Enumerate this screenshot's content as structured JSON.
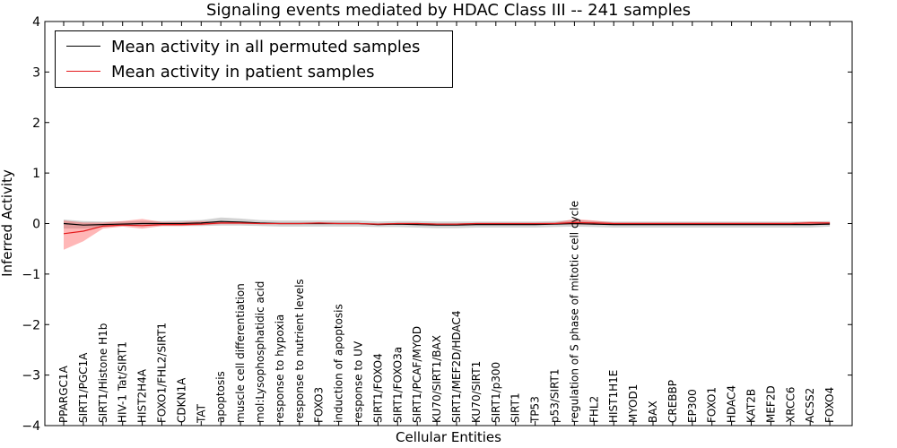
{
  "chart_data": {
    "type": "line",
    "title": "Signaling events mediated by HDAC Class III -- 241 samples",
    "xlabel": "Cellular Entities",
    "ylabel": "Inferred Activity",
    "ylim": [
      -4,
      4
    ],
    "yticks": [
      "−4",
      "−3",
      "−2",
      "−1",
      "0",
      "1",
      "2",
      "3",
      "4"
    ],
    "yticks_values": [
      -4,
      -3,
      -2,
      -1,
      0,
      1,
      2,
      3,
      4
    ],
    "categories": [
      "PPARGC1A",
      "SIRT1/PGC1A",
      "SIRT1/Histone H1b",
      "HIV-1 Tat/SIRT1",
      "HIST2H4A",
      "FOXO1/FHL2/SIRT1",
      "CDKN1A",
      "TAT",
      "apoptosis",
      "muscle cell differentiation",
      "mol:Lysophosphatidic acid",
      "response to hypoxia",
      "response to nutrient levels",
      "FOXO3",
      "induction of apoptosis",
      "response to UV",
      "SIRT1/FOXO4",
      "SIRT1/FOXO3a",
      "SIRT1/PCAF/MYOD",
      "KU70/SIRT1/BAX",
      "SIRT1/MEF2D/HDAC4",
      "KU70/SIRT1",
      "SIRT1/p300",
      "SIRT1",
      "TP53",
      "p53/SIRT1",
      "regulation of S phase of mitotic cell cycle",
      "FHL2",
      "HIST1H1E",
      "MYOD1",
      "BAX",
      "CREBBP",
      "EP300",
      "FOXO1",
      "HDAC4",
      "KAT2B",
      "MEF2D",
      "XRCC6",
      "ACSS2",
      "FOXO4"
    ],
    "series": [
      {
        "name": "Mean activity in all permuted samples",
        "color": "#000000",
        "values": [
          0.0,
          -0.03,
          -0.02,
          -0.01,
          0.0,
          0.0,
          0.0,
          0.01,
          0.04,
          0.03,
          0.01,
          0.0,
          0.0,
          0.0,
          0.0,
          0.0,
          -0.02,
          -0.01,
          -0.02,
          -0.03,
          -0.03,
          -0.02,
          -0.02,
          -0.02,
          -0.02,
          -0.01,
          0.0,
          -0.01,
          -0.02,
          -0.02,
          -0.02,
          -0.02,
          -0.02,
          -0.02,
          -0.02,
          -0.02,
          -0.02,
          -0.02,
          -0.02,
          -0.01
        ],
        "band_lower": [
          -0.1,
          -0.1,
          -0.07,
          -0.05,
          -0.05,
          -0.05,
          -0.05,
          -0.05,
          -0.04,
          -0.04,
          -0.05,
          -0.06,
          -0.06,
          -0.06,
          -0.06,
          -0.06,
          -0.07,
          -0.07,
          -0.08,
          -0.09,
          -0.09,
          -0.08,
          -0.08,
          -0.08,
          -0.08,
          -0.07,
          -0.06,
          -0.07,
          -0.08,
          -0.08,
          -0.08,
          -0.08,
          -0.08,
          -0.08,
          -0.08,
          -0.08,
          -0.08,
          -0.08,
          -0.08,
          -0.06
        ],
        "band_upper": [
          0.08,
          0.05,
          0.04,
          0.04,
          0.05,
          0.05,
          0.06,
          0.07,
          0.12,
          0.1,
          0.07,
          0.06,
          0.06,
          0.06,
          0.06,
          0.06,
          0.04,
          0.05,
          0.05,
          0.04,
          0.04,
          0.04,
          0.04,
          0.04,
          0.04,
          0.05,
          0.07,
          0.05,
          0.04,
          0.04,
          0.04,
          0.04,
          0.04,
          0.04,
          0.04,
          0.04,
          0.04,
          0.04,
          0.04,
          0.05
        ]
      },
      {
        "name": "Mean activity in patient samples",
        "color": "#e41a1c",
        "values": [
          -0.2,
          -0.15,
          -0.05,
          -0.03,
          -0.04,
          -0.02,
          -0.02,
          -0.01,
          0.01,
          0.01,
          0.0,
          0.0,
          0.0,
          0.01,
          0.0,
          0.0,
          -0.01,
          0.0,
          0.0,
          -0.01,
          -0.01,
          0.0,
          0.0,
          0.0,
          0.0,
          0.0,
          0.02,
          0.01,
          0.0,
          0.0,
          0.0,
          0.0,
          0.0,
          0.0,
          0.0,
          0.0,
          0.0,
          0.0,
          0.01,
          0.01
        ],
        "band_lower": [
          -0.52,
          -0.35,
          -0.1,
          -0.06,
          -0.1,
          -0.05,
          -0.05,
          -0.03,
          -0.01,
          -0.01,
          -0.01,
          -0.01,
          -0.01,
          -0.01,
          -0.01,
          -0.01,
          -0.02,
          -0.01,
          -0.01,
          -0.02,
          -0.02,
          -0.01,
          -0.01,
          -0.01,
          -0.01,
          -0.01,
          -0.02,
          -0.02,
          -0.01,
          -0.01,
          -0.01,
          -0.01,
          -0.01,
          -0.01,
          -0.01,
          -0.01,
          -0.01,
          -0.01,
          -0.01,
          -0.01
        ],
        "band_upper": [
          0.06,
          0.02,
          0.02,
          0.05,
          0.09,
          0.03,
          0.03,
          0.05,
          0.03,
          0.03,
          0.01,
          0.01,
          0.01,
          0.02,
          0.01,
          0.01,
          0.0,
          0.01,
          0.01,
          0.0,
          0.0,
          0.01,
          0.01,
          0.01,
          0.01,
          0.02,
          0.09,
          0.06,
          0.02,
          0.02,
          0.02,
          0.02,
          0.02,
          0.02,
          0.02,
          0.02,
          0.02,
          0.02,
          0.04,
          0.03
        ]
      }
    ],
    "legend": "top-left",
    "grid": false
  }
}
